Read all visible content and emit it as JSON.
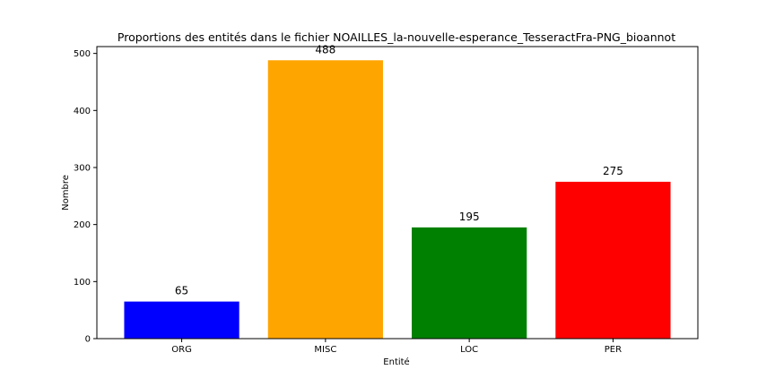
{
  "chart_data": {
    "type": "bar",
    "title": "Proportions des entités dans le fichier NOAILLES_la-nouvelle-esperance_TesseractFra-PNG_bioannot",
    "xlabel": "Entité",
    "ylabel": "Nombre",
    "categories": [
      "ORG",
      "MISC",
      "LOC",
      "PER"
    ],
    "values": [
      65,
      488,
      195,
      275
    ],
    "colors": [
      "#0000ff",
      "#ffa500",
      "#008000",
      "#ff0000"
    ],
    "ylim": [
      0,
      512
    ],
    "yticks": [
      0,
      100,
      200,
      300,
      400,
      500
    ],
    "grid": false
  }
}
